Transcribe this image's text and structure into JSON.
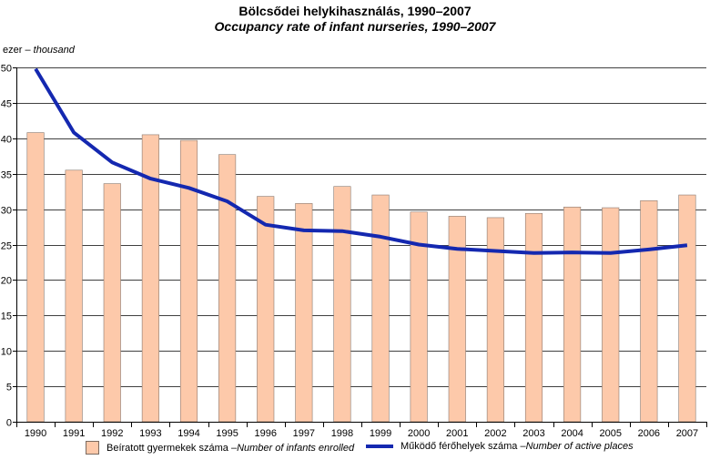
{
  "header": {
    "title": "Bölcsődei helykihasználás, 1990–2007",
    "subtitle": "Occupancy rate of infant nurseries, 1990–2007"
  },
  "unit": {
    "hu": "ezer – ",
    "en": "thousand"
  },
  "legend": {
    "bars_hu": "Beíratott gyermekek száma – ",
    "bars_en": "Number of infants enrolled",
    "line_hu": "Működő férőhelyek száma – ",
    "line_en": "Number of active places"
  },
  "colors": {
    "bar": "#fdc9aa",
    "bar_edge": "#8a7a70",
    "line": "#1428b0",
    "grid": "#000000"
  },
  "chart_data": {
    "type": "bar",
    "categories": [
      "1990",
      "1991",
      "1992",
      "1993",
      "1994",
      "1995",
      "1996",
      "1997",
      "1998",
      "1999",
      "2000",
      "2001",
      "2002",
      "2003",
      "2004",
      "2005",
      "2006",
      "2007"
    ],
    "series": [
      {
        "name": "Beíratott gyermekek száma – Number of infants enrolled",
        "type": "bar",
        "values": [
          40.8,
          35.5,
          33.6,
          40.5,
          39.7,
          37.7,
          31.8,
          30.8,
          33.2,
          32.0,
          29.6,
          29.0,
          28.8,
          29.4,
          30.3,
          30.2,
          31.2,
          32.0
        ]
      },
      {
        "name": "Működő férőhelyek száma – Number of active places",
        "type": "line",
        "values": [
          49.8,
          40.8,
          36.6,
          34.3,
          33.0,
          31.1,
          27.8,
          27.0,
          26.9,
          26.1,
          25.0,
          24.4,
          24.1,
          23.8,
          23.9,
          23.8,
          24.3,
          24.9
        ]
      }
    ],
    "ylim": [
      0,
      50
    ],
    "yticks": [
      0,
      5,
      10,
      15,
      20,
      25,
      30,
      35,
      40,
      45,
      50
    ],
    "grid": true,
    "legend_position": "bottom"
  }
}
